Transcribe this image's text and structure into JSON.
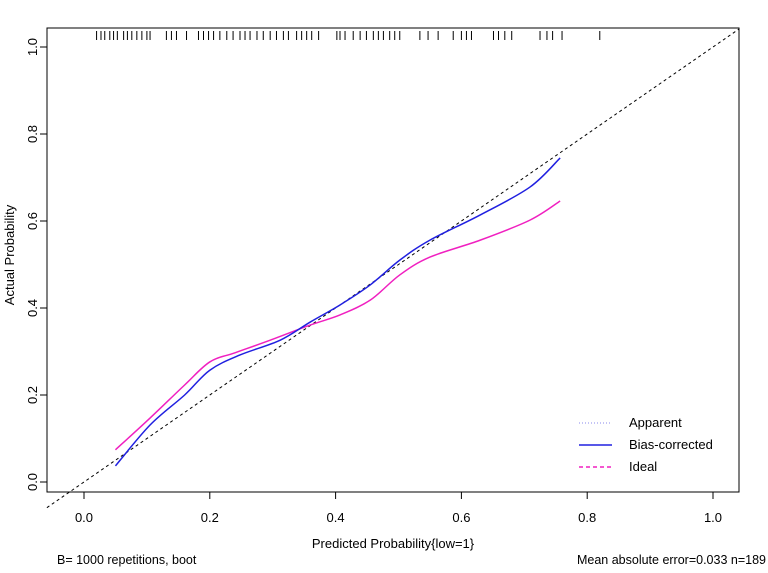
{
  "chart_data": {
    "type": "line",
    "title": "",
    "xlabel": "Predicted Probability{low=1}",
    "ylabel": "Actual Probability",
    "xlim": [
      -0.059,
      1.041
    ],
    "ylim": [
      -0.023,
      1.044
    ],
    "xticks": [
      "0.0",
      "0.2",
      "0.4",
      "0.6",
      "0.8",
      "1.0"
    ],
    "yticks": [
      "0.0",
      "0.2",
      "0.4",
      "0.6",
      "0.8",
      "1.0"
    ],
    "grid": false,
    "legend_placement": "bottom-right",
    "legend": [
      "Apparent",
      "Bias-corrected",
      "Ideal"
    ],
    "series": [
      {
        "name": "Bias-corrected",
        "color": "#2020e0",
        "x": [
          0.05,
          0.105,
          0.16,
          0.2,
          0.248,
          0.312,
          0.36,
          0.407,
          0.455,
          0.502,
          0.55,
          0.63,
          0.709,
          0.757
        ],
        "y": [
          0.037,
          0.131,
          0.2,
          0.257,
          0.292,
          0.326,
          0.368,
          0.407,
          0.453,
          0.51,
          0.556,
          0.614,
          0.678,
          0.745
        ]
      },
      {
        "name": "Apparent(pink)",
        "color": "#f020c0",
        "x": [
          0.05,
          0.105,
          0.16,
          0.2,
          0.24,
          0.296,
          0.36,
          0.407,
          0.455,
          0.502,
          0.55,
          0.63,
          0.709,
          0.757
        ],
        "y": [
          0.074,
          0.147,
          0.223,
          0.276,
          0.297,
          0.326,
          0.361,
          0.384,
          0.418,
          0.476,
          0.517,
          0.556,
          0.602,
          0.646
        ]
      },
      {
        "name": "Ideal",
        "color": "#000000",
        "x": [
          -0.059,
          1.041
        ],
        "y": [
          -0.059,
          1.041
        ]
      }
    ],
    "rug": [
      0.02,
      0.027,
      0.033,
      0.041,
      0.047,
      0.053,
      0.063,
      0.069,
      0.076,
      0.084,
      0.092,
      0.1,
      0.105,
      0.131,
      0.139,
      0.147,
      0.163,
      0.182,
      0.19,
      0.198,
      0.206,
      0.216,
      0.227,
      0.237,
      0.248,
      0.256,
      0.264,
      0.275,
      0.285,
      0.296,
      0.306,
      0.317,
      0.325,
      0.338,
      0.346,
      0.354,
      0.362,
      0.373,
      0.402,
      0.407,
      0.415,
      0.428,
      0.439,
      0.449,
      0.46,
      0.468,
      0.476,
      0.486,
      0.494,
      0.502,
      0.534,
      0.547,
      0.563,
      0.587,
      0.6,
      0.608,
      0.616,
      0.651,
      0.659,
      0.669,
      0.68,
      0.725,
      0.736,
      0.745,
      0.76,
      0.82
    ],
    "footnote_left": "B= 1000 repetitions, boot",
    "footnote_right": "Mean absolute error=0.033 n=189"
  }
}
